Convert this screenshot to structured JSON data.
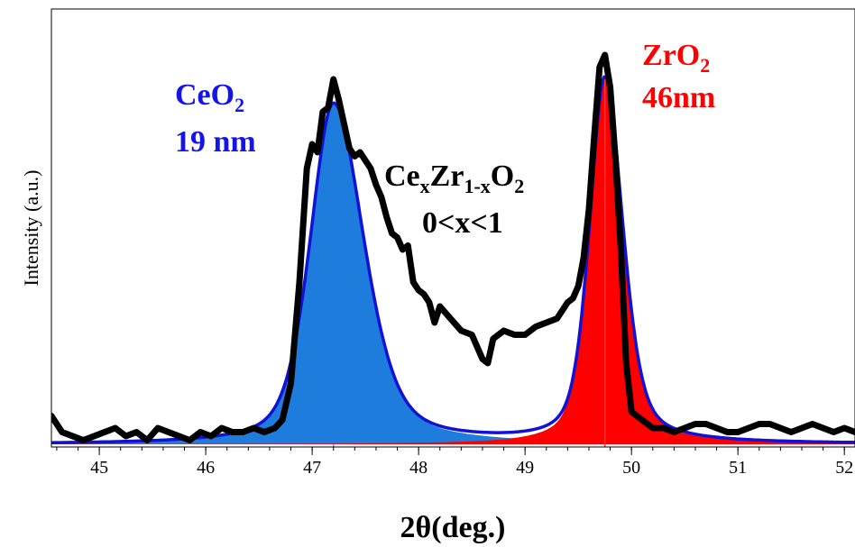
{
  "chart_data": {
    "type": "line",
    "xlabel": "2θ(deg.)",
    "ylabel": "Intensity (a.u.)",
    "xlim": [
      44.55,
      52.1
    ],
    "ylim": [
      0,
      100
    ],
    "xticks": [
      45,
      46,
      47,
      48,
      49,
      50,
      51,
      52
    ],
    "grid": false,
    "colors": {
      "ceo2": "#1e7ddc",
      "zro2": "#ff0000",
      "fit": "#1212d6",
      "data": "#000000",
      "marker_ceo2": "#5aa0ff",
      "marker_zro2": "#ff3030"
    },
    "annotations": {
      "ceo2_formula": {
        "base": "CeO",
        "sub": "2"
      },
      "ceo2_size": "19 nm",
      "zro2_formula": {
        "base": "ZrO",
        "sub": "2"
      },
      "zro2_size": "46nm",
      "mixed_formula": {
        "p1": "Ce",
        "s1": "x",
        "p2": "Zr",
        "s2": "1-x",
        "p3": "O",
        "s3": "2"
      },
      "mixed_range": "0<x<1"
    },
    "peaks": [
      {
        "name": "CeO2",
        "center": 47.2,
        "height": 84,
        "width_left": 0.26,
        "width_right": 0.34
      },
      {
        "name": "ZrO2",
        "center": 49.75,
        "height": 90,
        "width_left": 0.17,
        "width_right": 0.2
      }
    ],
    "series": [
      {
        "x": [
          44.55,
          44.65,
          44.75,
          44.85,
          44.95,
          45.05,
          45.15,
          45.25,
          45.35,
          45.45,
          45.55,
          45.65,
          45.75,
          45.85,
          45.95,
          46.05,
          46.15,
          46.25,
          46.35,
          46.45,
          46.55,
          46.65,
          46.72,
          46.8,
          46.88,
          46.95,
          47.0,
          47.05,
          47.1,
          47.15,
          47.2,
          47.25,
          47.3,
          47.35,
          47.4,
          47.45,
          47.5,
          47.55,
          47.6,
          47.65,
          47.7,
          47.75,
          47.8,
          47.85,
          47.9,
          47.95,
          48.0,
          48.05,
          48.1,
          48.15,
          48.2,
          48.3,
          48.4,
          48.5,
          48.6,
          48.65,
          48.7,
          48.8,
          48.9,
          49.0,
          49.1,
          49.2,
          49.3,
          49.4,
          49.45,
          49.5,
          49.55,
          49.6,
          49.65,
          49.7,
          49.75,
          49.8,
          49.85,
          49.9,
          49.95,
          50.0,
          50.1,
          50.2,
          50.3,
          50.4,
          50.5,
          50.6,
          50.7,
          50.8,
          50.9,
          51.0,
          51.1,
          51.2,
          51.3,
          51.4,
          51.5,
          51.6,
          51.7,
          51.8,
          51.9,
          52.0,
          52.1
        ],
        "values": [
          7,
          3,
          2,
          1,
          2,
          3,
          4,
          2,
          3,
          1,
          4,
          3,
          2,
          1,
          3,
          2,
          4,
          3,
          3,
          4,
          3,
          4,
          6,
          15,
          40,
          68,
          74,
          72,
          82,
          83,
          90,
          85,
          79,
          73,
          71,
          72,
          70,
          68,
          64,
          61,
          56,
          52,
          51,
          48,
          49,
          40,
          38,
          37,
          35,
          30,
          34,
          31,
          28,
          27,
          21,
          20,
          26,
          28,
          27,
          27,
          29,
          30,
          31,
          35,
          36,
          39,
          46,
          58,
          76,
          93,
          96,
          88,
          70,
          48,
          20,
          8,
          6,
          4,
          4,
          3,
          4,
          5,
          5,
          4,
          3,
          3,
          4,
          5,
          5,
          4,
          3,
          4,
          5,
          4,
          3,
          4,
          3
        ]
      }
    ]
  }
}
